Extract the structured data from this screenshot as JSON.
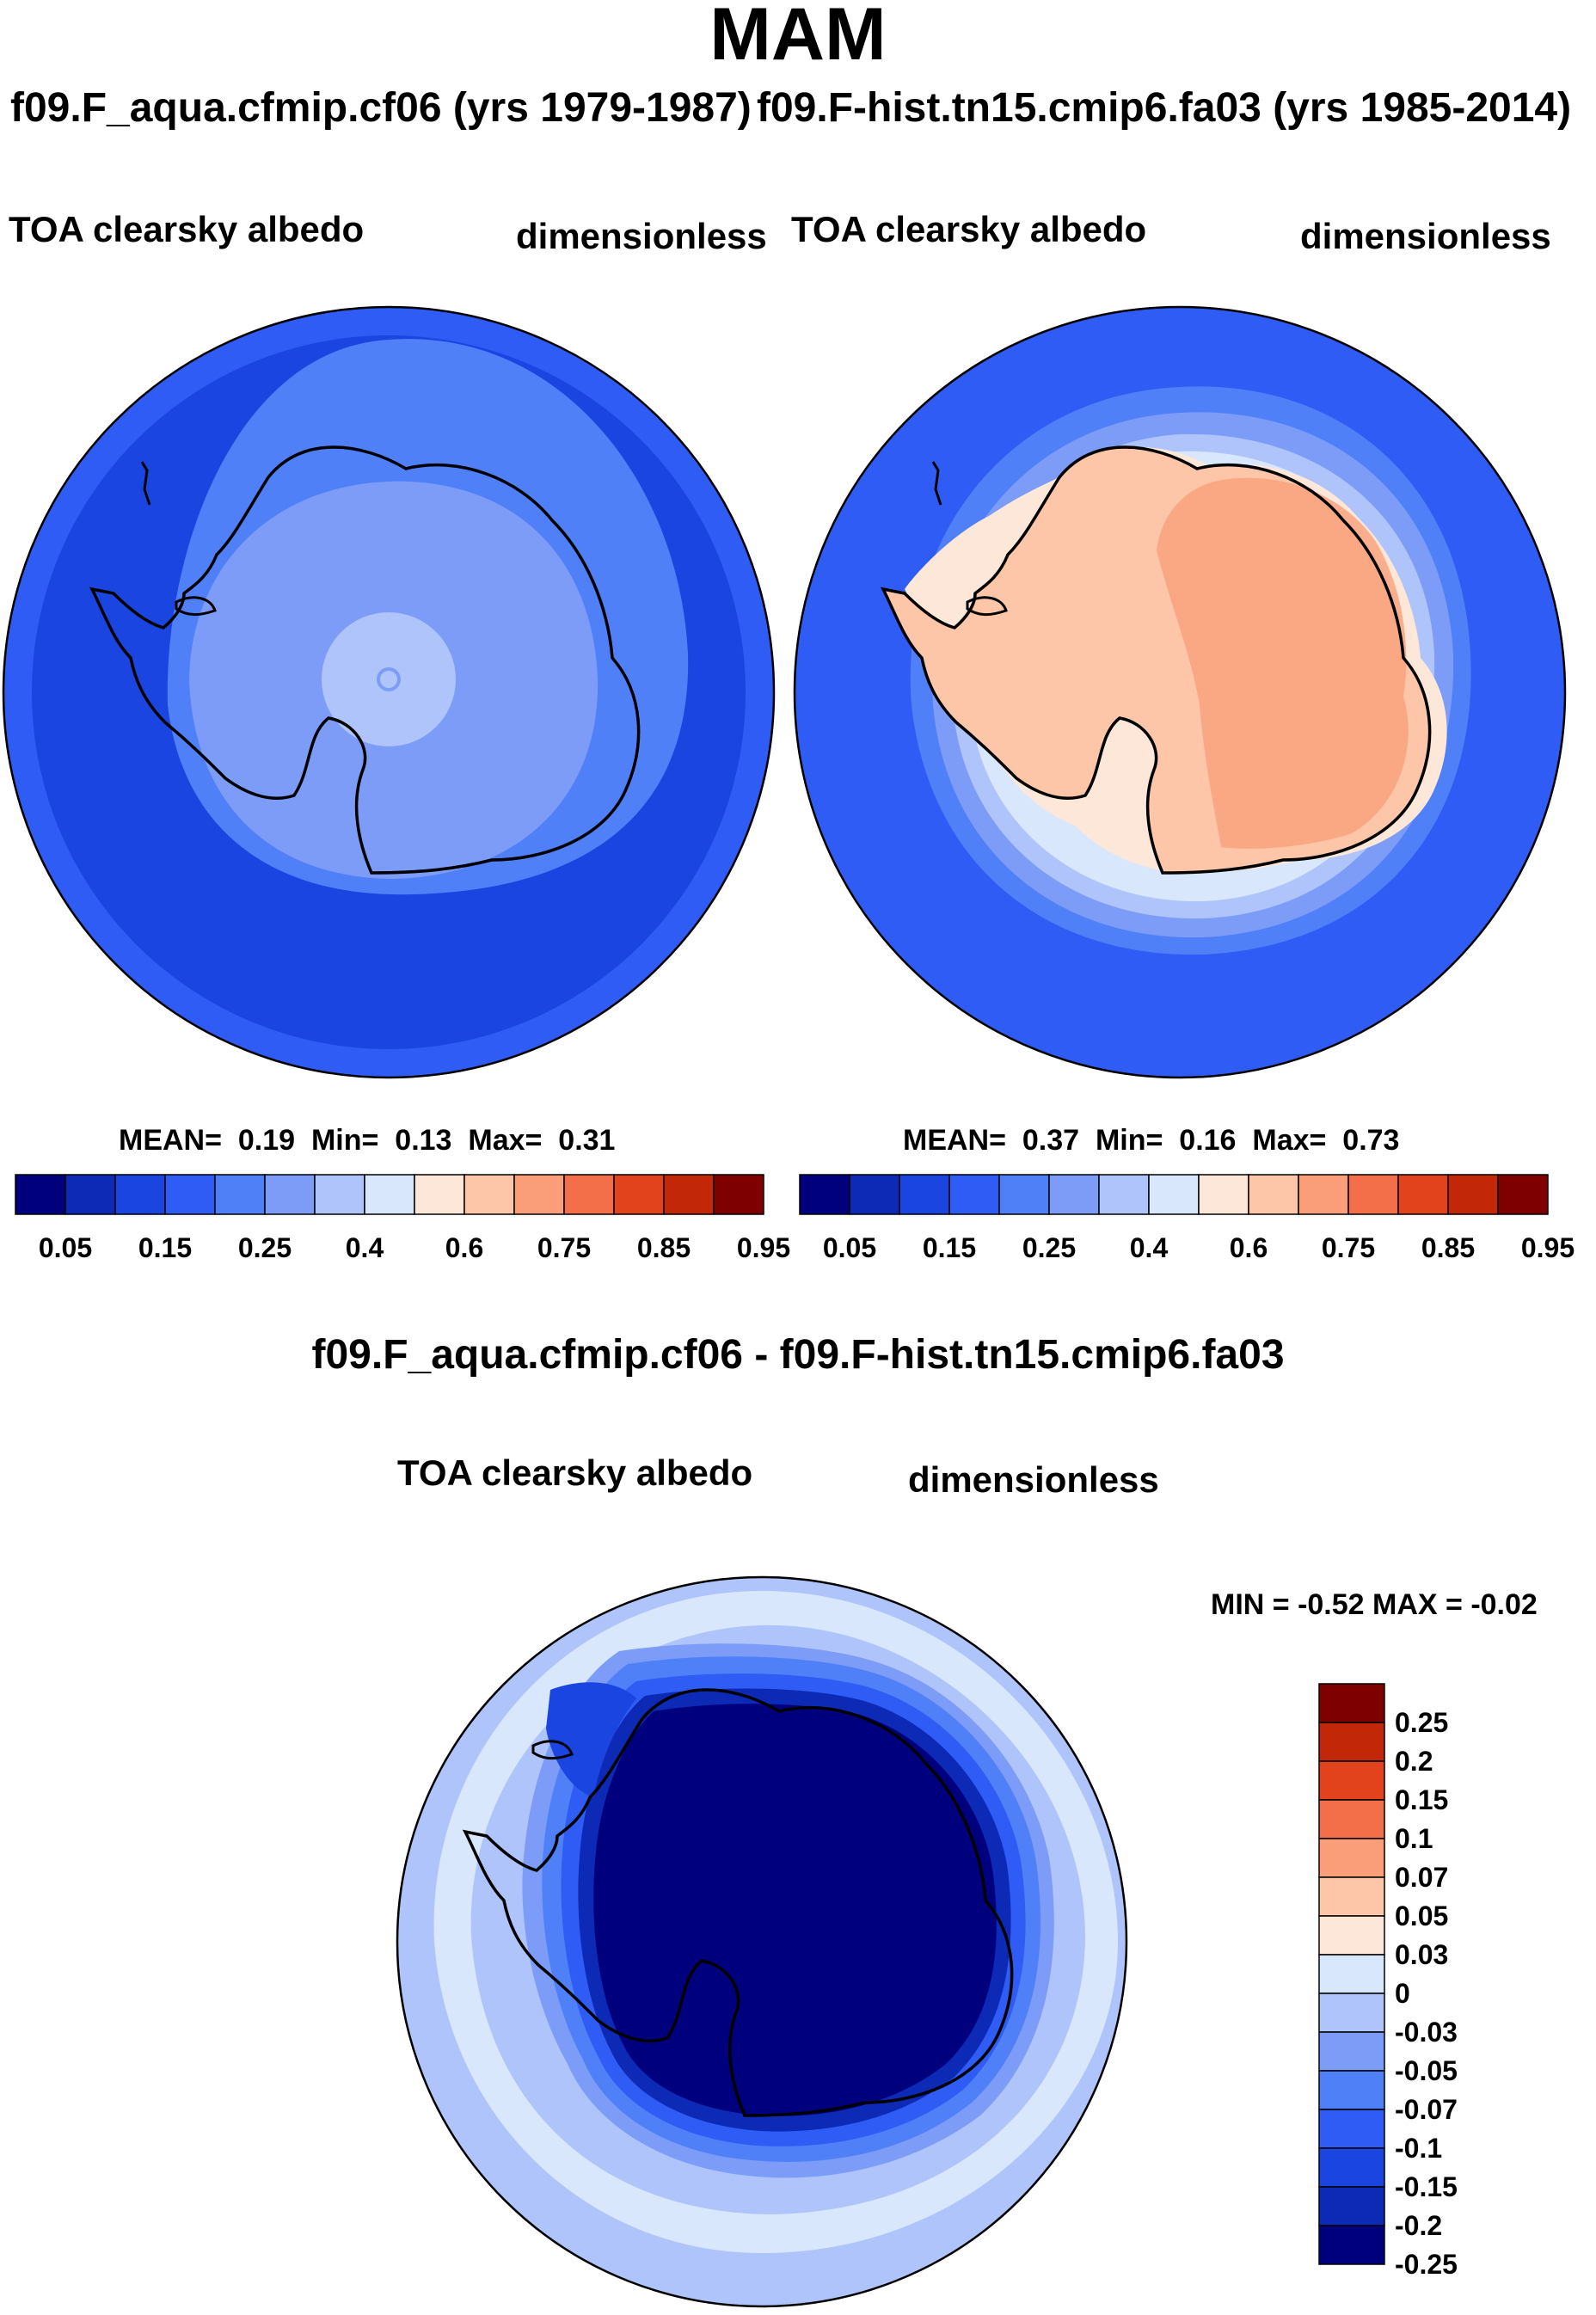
{
  "title": "MAM",
  "panels": [
    {
      "id": "left",
      "title": "f09.F_aqua.cfmip.cf06 (yrs 1979-1987)",
      "var_label": "TOA clearsky albedo",
      "units": "dimensionless",
      "stats": {
        "mean_label": "MEAN=",
        "mean": "0.19",
        "min_label": "Min=",
        "min": "0.13",
        "max_label": "Max=",
        "max": "0.31"
      },
      "colorbar": {
        "ticks": [
          "0.05",
          "0.15",
          "0.25",
          "0.4",
          "0.6",
          "0.75",
          "0.85",
          "0.95"
        ]
      }
    },
    {
      "id": "right",
      "title": "f09.F-hist.tn15.cmip6.fa03 (yrs 1985-2014)",
      "var_label": "TOA clearsky albedo",
      "units": "dimensionless",
      "stats": {
        "mean_label": "MEAN=",
        "mean": "0.37",
        "min_label": "Min=",
        "min": "0.16",
        "max_label": "Max=",
        "max": "0.73"
      },
      "colorbar": {
        "ticks": [
          "0.05",
          "0.15",
          "0.25",
          "0.4",
          "0.6",
          "0.75",
          "0.85",
          "0.95"
        ]
      }
    }
  ],
  "diff": {
    "title": "f09.F_aqua.cfmip.cf06 - f09.F-hist.tn15.cmip6.fa03",
    "var_label": "TOA clearsky albedo",
    "units": "dimensionless",
    "minmax": "MIN =  -0.52 MAX =  -0.02",
    "colorbar": {
      "labels": [
        "0.25",
        "0.2",
        "0.15",
        "0.1",
        "0.07",
        "0.05",
        "0.03",
        "0",
        "-0.03",
        "-0.05",
        "-0.07",
        "-0.1",
        "-0.15",
        "-0.2",
        "-0.25"
      ]
    }
  },
  "colors": {
    "main_scale": [
      "#00007f",
      "#0c2ab6",
      "#1a45e0",
      "#2e5cf4",
      "#5080f8",
      "#7c9cf8",
      "#aec4fa",
      "#d9e7fc",
      "#fde7d8",
      "#fdc6a8",
      "#f99e78",
      "#f26f4a",
      "#e2431d",
      "#c22808",
      "#7f0000"
    ],
    "diff_scale": [
      "#00007f",
      "#0c2ab6",
      "#1a45e0",
      "#2e5cf4",
      "#5080f8",
      "#7c9cf8",
      "#aec4fa",
      "#d9e7fc",
      "#fde7d8",
      "#fdc6a8",
      "#f99e78",
      "#f26f4a",
      "#e2431d",
      "#c22808",
      "#7f0000"
    ]
  }
}
